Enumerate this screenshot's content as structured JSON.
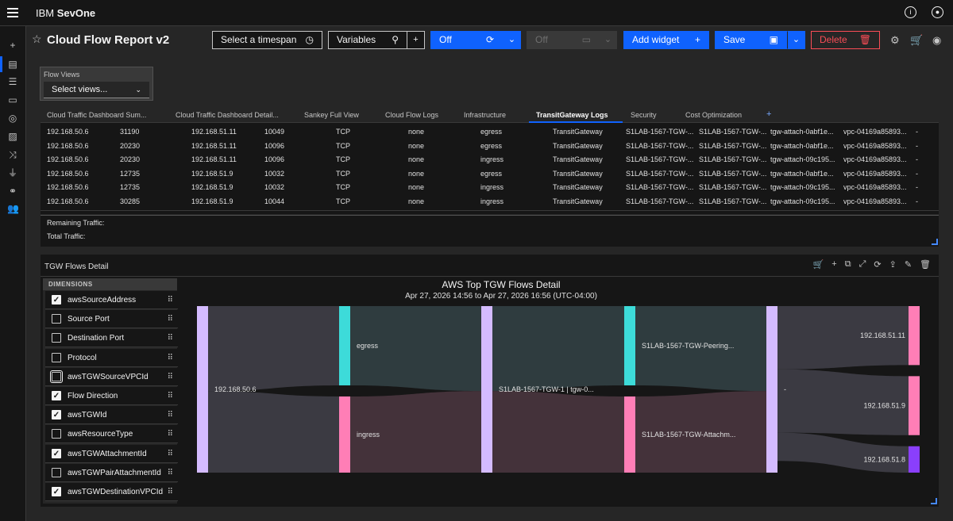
{
  "app": {
    "brand_prefix": "IBM",
    "brand_name": "SevOne"
  },
  "header": {
    "title": "Cloud Flow Report v2",
    "timespan_label": "Select a timespan",
    "variables_label": "Variables",
    "refresh_label": "Off",
    "display_label": "Off",
    "add_widget_label": "Add widget",
    "save_label": "Save",
    "delete_label": "Delete"
  },
  "flow_views": {
    "label": "Flow Views",
    "select_placeholder": "Select views..."
  },
  "tabs": [
    {
      "label": "Cloud Traffic Dashboard Sum..."
    },
    {
      "label": "Cloud Traffic Dashboard Detail..."
    },
    {
      "label": "Sankey Full View"
    },
    {
      "label": "Cloud Flow Logs"
    },
    {
      "label": "Infrastructure"
    },
    {
      "label": "TransitGateway Logs"
    },
    {
      "label": "Security"
    },
    {
      "label": "Cost Optimization"
    }
  ],
  "table": {
    "rows": [
      [
        "192.168.50.6",
        "31190",
        "192.168.51.11",
        "10049",
        "TCP",
        "none",
        "egress",
        "TransitGateway",
        "S1LAB-1567-TGW-...",
        "S1LAB-1567-TGW-...",
        "tgw-attach-0abf1e...",
        "vpc-04169a85893...",
        "-"
      ],
      [
        "192.168.50.6",
        "20230",
        "192.168.51.11",
        "10096",
        "TCP",
        "none",
        "egress",
        "TransitGateway",
        "S1LAB-1567-TGW-...",
        "S1LAB-1567-TGW-...",
        "tgw-attach-0abf1e...",
        "vpc-04169a85893...",
        "-"
      ],
      [
        "192.168.50.6",
        "20230",
        "192.168.51.11",
        "10096",
        "TCP",
        "none",
        "ingress",
        "TransitGateway",
        "S1LAB-1567-TGW-...",
        "S1LAB-1567-TGW-...",
        "tgw-attach-09c195...",
        "vpc-04169a85893...",
        "-"
      ],
      [
        "192.168.50.6",
        "12735",
        "192.168.51.9",
        "10032",
        "TCP",
        "none",
        "egress",
        "TransitGateway",
        "S1LAB-1567-TGW-...",
        "S1LAB-1567-TGW-...",
        "tgw-attach-0abf1e...",
        "vpc-04169a85893...",
        "-"
      ],
      [
        "192.168.50.6",
        "12735",
        "192.168.51.9",
        "10032",
        "TCP",
        "none",
        "ingress",
        "TransitGateway",
        "S1LAB-1567-TGW-...",
        "S1LAB-1567-TGW-...",
        "tgw-attach-09c195...",
        "vpc-04169a85893...",
        "-"
      ],
      [
        "192.168.50.6",
        "30285",
        "192.168.51.9",
        "10044",
        "TCP",
        "none",
        "ingress",
        "TransitGateway",
        "S1LAB-1567-TGW-...",
        "S1LAB-1567-TGW-...",
        "tgw-attach-09c195...",
        "vpc-04169a85893...",
        "-"
      ]
    ],
    "remaining_label": "Remaining Traffic:",
    "total_label": "Total Traffic:"
  },
  "widget": {
    "title": "TGW Flows Detail",
    "dimensions_header": "DIMENSIONS",
    "dimensions": [
      {
        "name": "awsSourceAddress",
        "checked": true
      },
      {
        "name": "Source Port",
        "checked": false
      },
      {
        "name": "Destination Port",
        "checked": false
      },
      {
        "name": "Protocol",
        "checked": false
      },
      {
        "name": "awsTGWSourceVPCId",
        "checked": false
      },
      {
        "name": "Flow Direction",
        "checked": true
      },
      {
        "name": "awsTGWId",
        "checked": true
      },
      {
        "name": "awsResourceType",
        "checked": false
      },
      {
        "name": "awsTGWAttachmentId",
        "checked": true
      },
      {
        "name": "awsTGWPairAttachmentId",
        "checked": false
      },
      {
        "name": "awsTGWDestinationVPCId",
        "checked": true
      }
    ],
    "chart_title": "AWS Top TGW Flows Detail",
    "chart_subtitle": "Apr 27, 2026 14:56 to Apr 27, 2026 16:56 (UTC-04:00)"
  },
  "chart_data": {
    "type": "sankey",
    "nodes": [
      {
        "label": "192.168.50.6",
        "color": "#d4bbff"
      },
      {
        "label": "egress",
        "color": "#3ddbd9"
      },
      {
        "label": "ingress",
        "color": "#ff7eb6"
      },
      {
        "label": "S1LAB-1567-TGW-1 | tgw-0...",
        "color": "#d4bbff"
      },
      {
        "label": "S1LAB-1567-TGW-Peering...",
        "color": "#3ddbd9"
      },
      {
        "label": "S1LAB-1567-TGW-Attachm...",
        "color": "#ff7eb6"
      },
      {
        "label": "-",
        "color": "#d4bbff"
      },
      {
        "label": "192.168.51.11",
        "color": "#ff7eb6"
      },
      {
        "label": "192.168.51.9",
        "color": "#ff7eb6"
      },
      {
        "label": "192.168.51.8",
        "color": "#8a3ffc"
      }
    ],
    "links": [
      {
        "source": "192.168.50.6",
        "target": "egress",
        "value": 51
      },
      {
        "source": "192.168.50.6",
        "target": "ingress",
        "value": 49
      },
      {
        "source": "egress",
        "target": "S1LAB-1567-TGW-1 | tgw-0...",
        "value": 51
      },
      {
        "source": "ingress",
        "target": "S1LAB-1567-TGW-1 | tgw-0...",
        "value": 49
      },
      {
        "source": "S1LAB-1567-TGW-1 | tgw-0...",
        "target": "S1LAB-1567-TGW-Peering...",
        "value": 51
      },
      {
        "source": "S1LAB-1567-TGW-1 | tgw-0...",
        "target": "S1LAB-1567-TGW-Attachm...",
        "value": 49
      },
      {
        "source": "S1LAB-1567-TGW-Peering...",
        "target": "-",
        "value": 51
      },
      {
        "source": "S1LAB-1567-TGW-Attachm...",
        "target": "-",
        "value": 49
      },
      {
        "source": "-",
        "target": "192.168.51.11",
        "value": 38
      },
      {
        "source": "-",
        "target": "192.168.51.9",
        "value": 38
      },
      {
        "source": "-",
        "target": "192.168.51.8",
        "value": 17
      }
    ]
  }
}
